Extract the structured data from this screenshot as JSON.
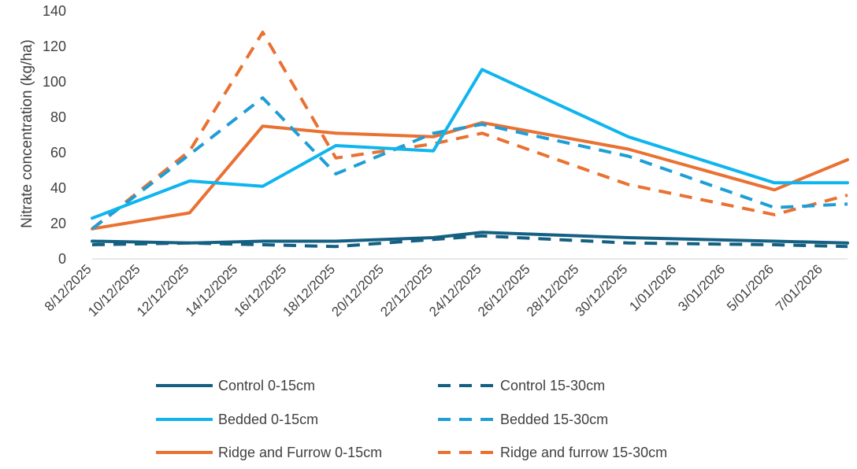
{
  "chart_data": {
    "type": "line",
    "title": "",
    "xlabel": "",
    "ylabel": "Nitrate concentration (kg/ha)",
    "ylim": [
      0,
      140
    ],
    "yticks": [
      "0",
      "20",
      "40",
      "60",
      "80",
      "100",
      "120",
      "140"
    ],
    "xlim": [
      "8/12/2025",
      "8/01/2026"
    ],
    "xticks": [
      "8/12/2025",
      "10/12/2025",
      "12/12/2025",
      "14/12/2025",
      "16/12/2025",
      "18/12/2025",
      "20/12/2025",
      "22/12/2025",
      "24/12/2025",
      "26/12/2025",
      "28/12/2025",
      "30/12/2025",
      "1/01/2026",
      "3/01/2026",
      "5/01/2026",
      "7/01/2026"
    ],
    "grid": false,
    "legend": "bottom",
    "series": [
      {
        "name": "Control 0-15cm",
        "color": "#156082",
        "dash": "solid",
        "x": [
          "8/12/2025",
          "12/12/2025",
          "15/12/2025",
          "18/12/2025",
          "22/12/2025",
          "24/12/2025",
          "30/12/2025",
          "5/01/2026",
          "8/01/2026"
        ],
        "y": [
          10,
          9,
          10,
          10,
          12,
          15,
          12,
          10,
          9
        ]
      },
      {
        "name": "Control 15-30cm",
        "color": "#156082",
        "dash": "dashed",
        "x": [
          "8/12/2025",
          "12/12/2025",
          "15/12/2025",
          "18/12/2025",
          "22/12/2025",
          "24/12/2025",
          "30/12/2025",
          "5/01/2026",
          "8/01/2026"
        ],
        "y": [
          8,
          9,
          8,
          7,
          11,
          13,
          9,
          8,
          7
        ]
      },
      {
        "name": "Bedded 0-15cm",
        "color": "#0FB5EE",
        "dash": "solid",
        "x": [
          "8/12/2025",
          "12/12/2025",
          "15/12/2025",
          "18/12/2025",
          "22/12/2025",
          "24/12/2025",
          "30/12/2025",
          "5/01/2026",
          "8/01/2026"
        ],
        "y": [
          23,
          44,
          41,
          64,
          61,
          107,
          69,
          43,
          43
        ]
      },
      {
        "name": "Bedded 15-30cm",
        "color": "#1E9ED6",
        "dash": "dashed",
        "x": [
          "8/12/2025",
          "12/12/2025",
          "15/12/2025",
          "18/12/2025",
          "22/12/2025",
          "24/12/2025",
          "30/12/2025",
          "5/01/2026",
          "8/01/2026"
        ],
        "y": [
          17,
          59,
          91,
          48,
          71,
          76,
          58,
          29,
          31
        ]
      },
      {
        "name": "Ridge and Furrow 0-15cm",
        "color": "#E97132",
        "dash": "solid",
        "x": [
          "8/12/2025",
          "12/12/2025",
          "15/12/2025",
          "18/12/2025",
          "22/12/2025",
          "24/12/2025",
          "30/12/2025",
          "5/01/2026",
          "8/01/2026"
        ],
        "y": [
          17,
          26,
          75,
          71,
          69,
          77,
          62,
          39,
          56
        ]
      },
      {
        "name": "Ridge and furrow 15-30cm",
        "color": "#E97132",
        "dash": "dashed",
        "x": [
          "8/12/2025",
          "12/12/2025",
          "15/12/2025",
          "18/12/2025",
          "22/12/2025",
          "24/12/2025",
          "30/12/2025",
          "5/01/2026",
          "8/01/2026"
        ],
        "y": [
          17,
          61,
          128,
          57,
          65,
          71,
          42,
          25,
          36
        ]
      }
    ]
  }
}
